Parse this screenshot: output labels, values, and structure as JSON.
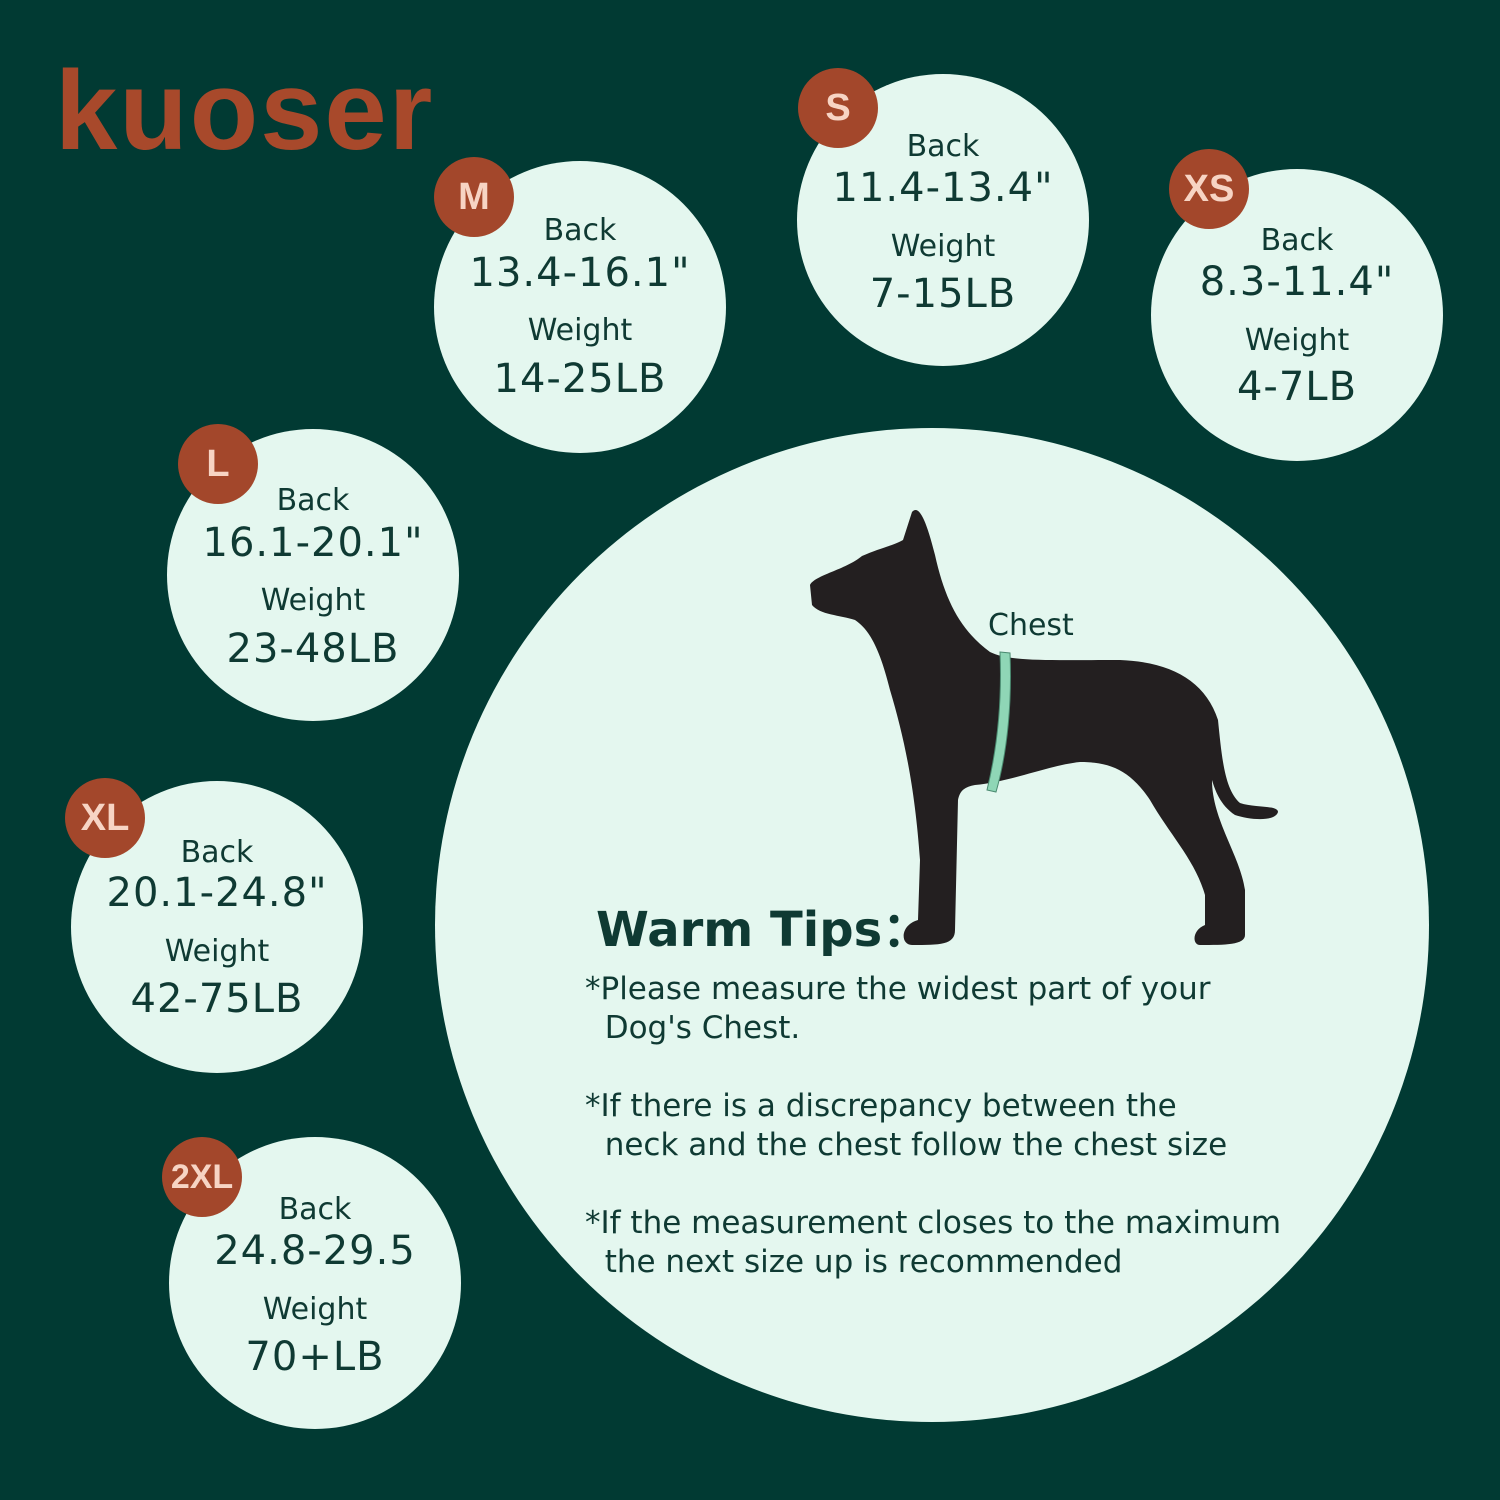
{
  "brand": {
    "logo_text": "kuoser",
    "color": "#a8492b"
  },
  "colors": {
    "background": "#013a33",
    "circle": "#e4f7ef",
    "badge": "#a3472b",
    "text": "#0f3a33"
  },
  "sizes": [
    {
      "size": "M",
      "back_label": "Back",
      "back": "13.4-16.1\"",
      "weight_label": "Weight",
      "weight": "14-25LB"
    },
    {
      "size": "S",
      "back_label": "Back",
      "back": "11.4-13.4\"",
      "weight_label": "Weight",
      "weight": "7-15LB"
    },
    {
      "size": "XS",
      "back_label": "Back",
      "back": "8.3-11.4\"",
      "weight_label": "Weight",
      "weight": "4-7LB"
    },
    {
      "size": "L",
      "back_label": "Back",
      "back": "16.1-20.1\"",
      "weight_label": "Weight",
      "weight": "23-48LB"
    },
    {
      "size": "XL",
      "back_label": "Back",
      "back": "20.1-24.8\"",
      "weight_label": "Weight",
      "weight": "42-75LB"
    },
    {
      "size": "2XL",
      "back_label": "Back",
      "back": "24.8-29.5",
      "weight_label": "Weight",
      "weight": "70+LB"
    }
  ],
  "diagram": {
    "chest_label": "Chest",
    "icon": "dog-silhouette-icon"
  },
  "tips": {
    "title": "Warm Tips：",
    "items": [
      "*Please measure the widest part of your\n  Dog's Chest.",
      "*If there is a discrepancy between the\n  neck and the chest follow the chest size",
      "*If the measurement closes to the maximum\n  the next size up is recommended"
    ]
  }
}
